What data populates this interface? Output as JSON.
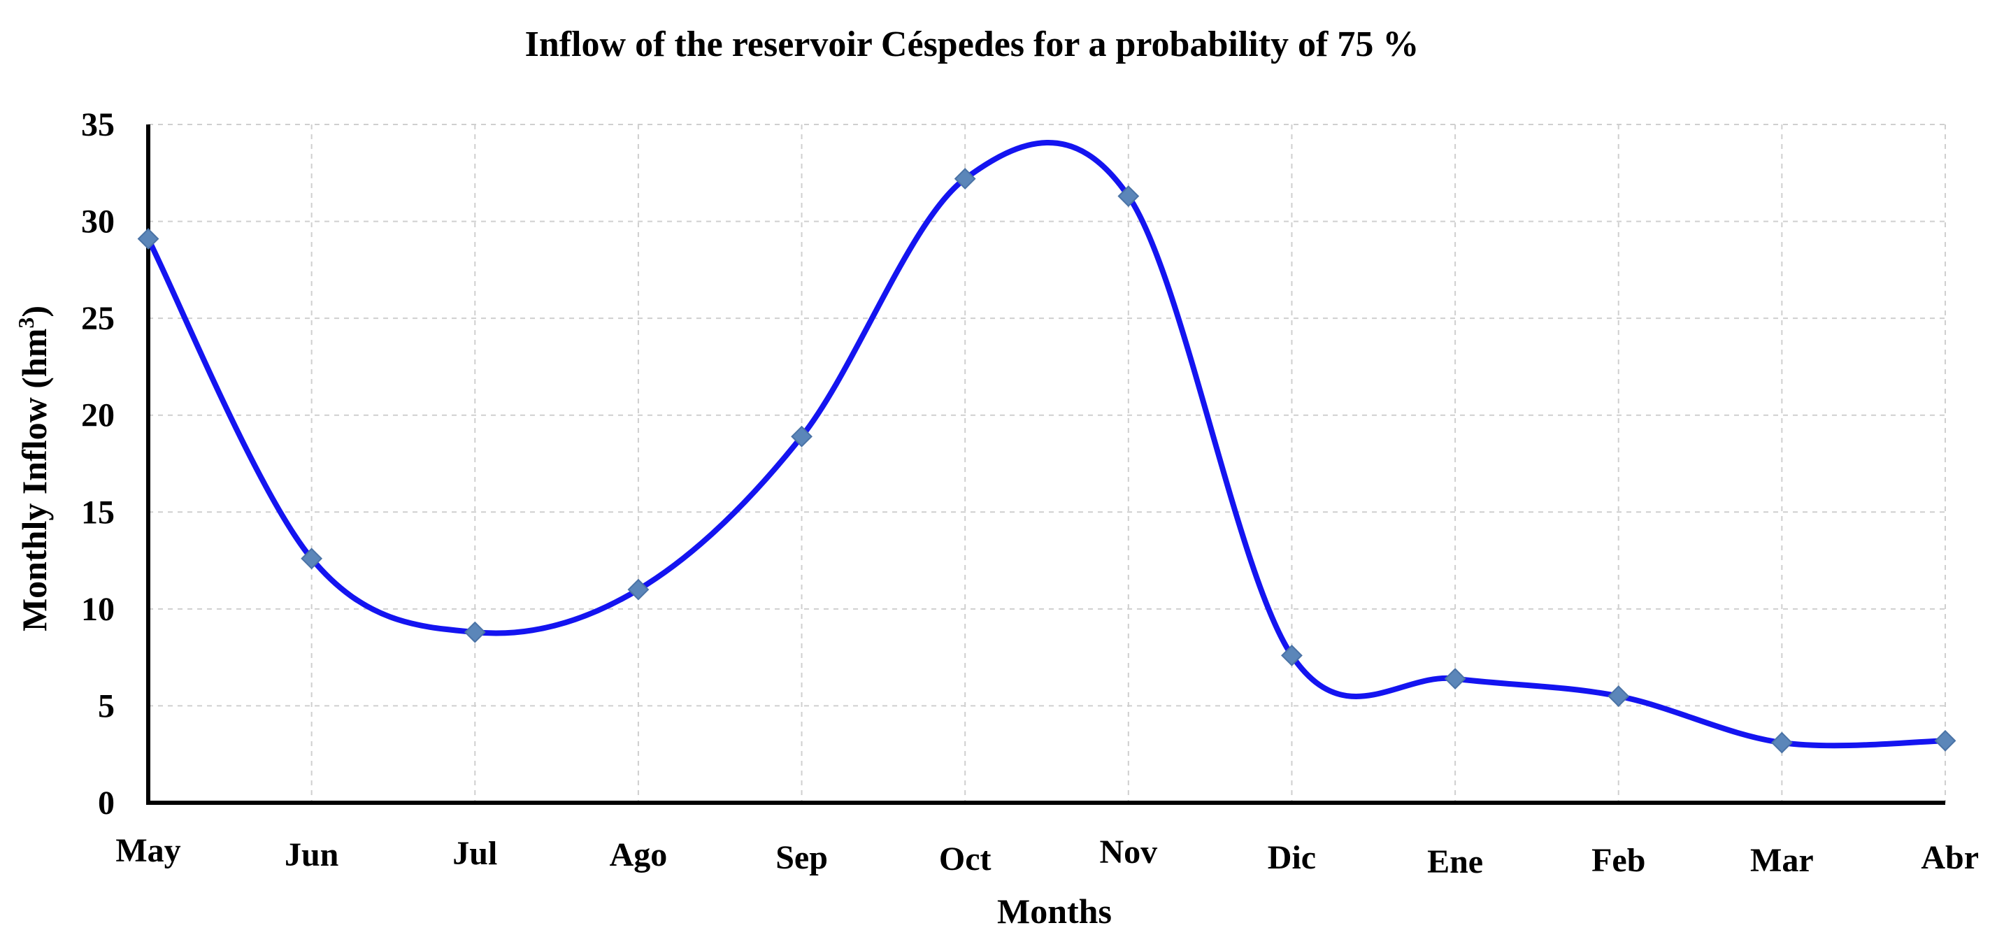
{
  "colors": {
    "line": "#1414f0",
    "marker": "#5b86b9",
    "grid": "#cfcfcf",
    "axis": "#000000"
  },
  "chart_data": {
    "type": "line",
    "title": "Inflow of the reservoir Céspedes  for a probability of  75 %",
    "xlabel": "Months",
    "ylabel": "Monthly Inflow  (hm",
    "ylabel_superscript": "3",
    "ylabel_close": ")",
    "categories": [
      "May",
      "Jun",
      "Jul",
      "Ago",
      "Sep",
      "Oct",
      "Nov",
      "Dic",
      "Ene",
      "Feb",
      "Mar",
      "Abr"
    ],
    "values": [
      29.1,
      12.6,
      8.8,
      11.0,
      18.9,
      32.2,
      31.3,
      7.6,
      6.4,
      5.5,
      3.1,
      3.2
    ],
    "ylim": [
      0,
      35
    ],
    "yticks": [
      0,
      5,
      10,
      15,
      20,
      25,
      30,
      35
    ],
    "grid": true,
    "smooth": true,
    "marker": "diamond"
  }
}
